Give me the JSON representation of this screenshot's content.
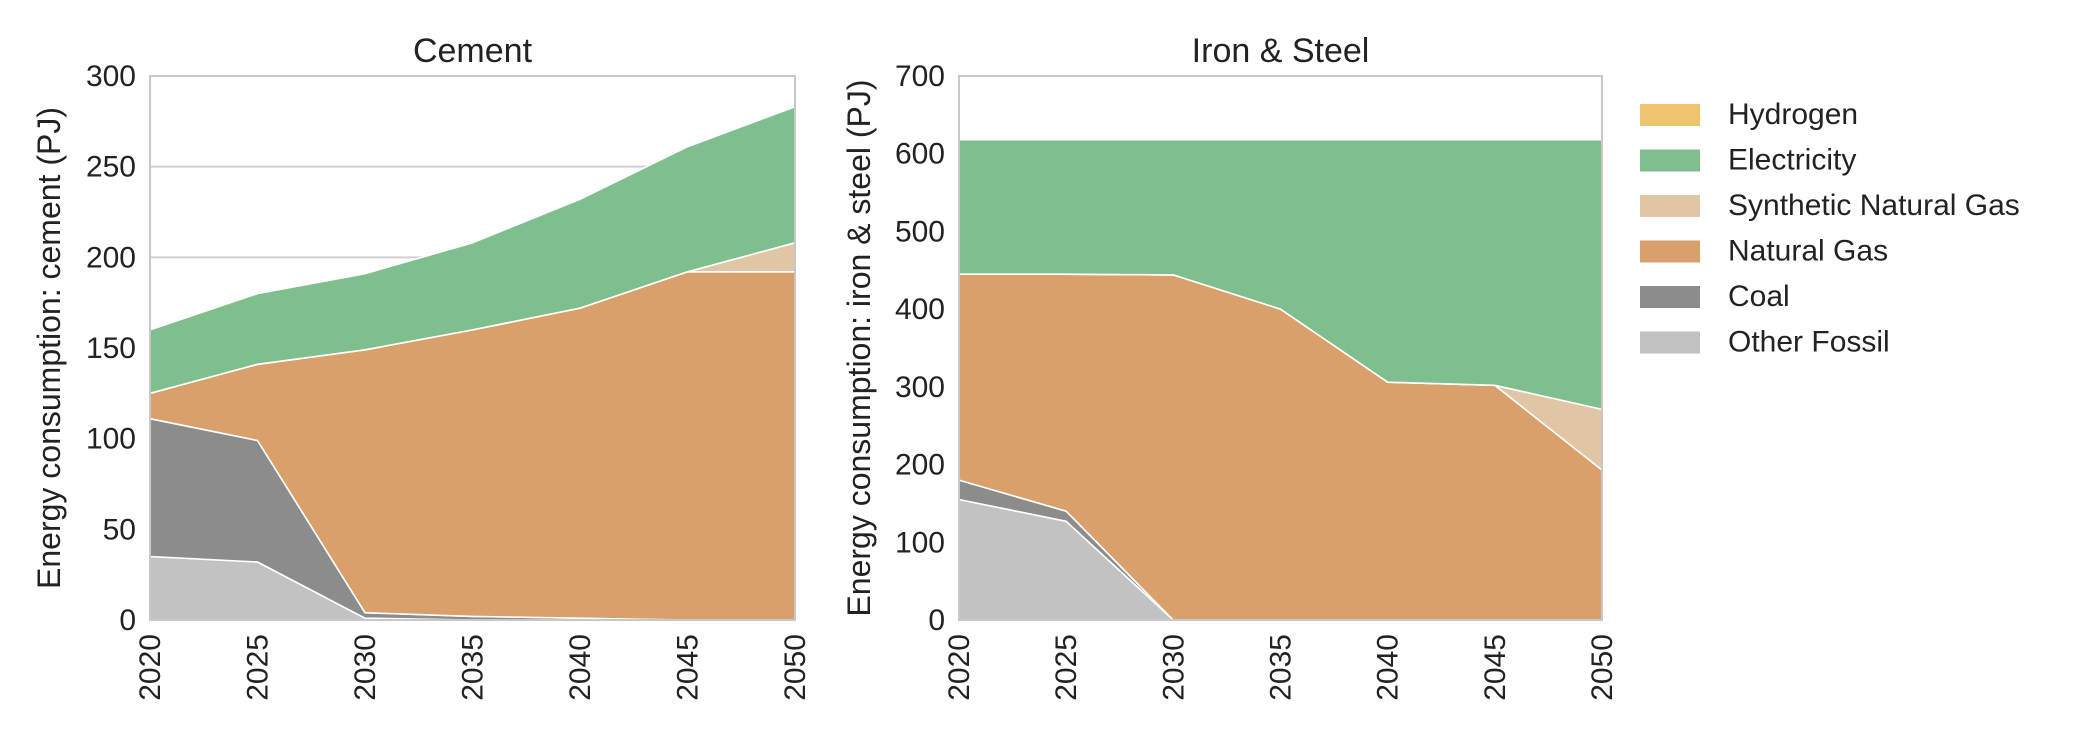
{
  "colors": {
    "Hydrogen": "#f0c46e",
    "Electricity": "#7fbf8e",
    "Synthetic Natural Gas": "#e0c6a5",
    "Natural Gas": "#d9a06b",
    "Coal": "#8c8c8c",
    "Other Fossil": "#c2c2c2"
  },
  "legend": {
    "items": [
      "Hydrogen",
      "Electricity",
      "Synthetic Natural Gas",
      "Natural Gas",
      "Coal",
      "Other Fossil"
    ]
  },
  "chart_data": [
    {
      "type": "area",
      "title": "Cement",
      "xlabel": "",
      "ylabel": "Energy consumption: cement (PJ)",
      "x": [
        2020,
        2025,
        2030,
        2035,
        2040,
        2045,
        2050
      ],
      "ylim": [
        0,
        300
      ],
      "yticks": [
        0,
        50,
        100,
        150,
        200,
        250,
        300
      ],
      "stacked": true,
      "series": [
        {
          "name": "Other Fossil",
          "values": [
            35,
            32,
            1,
            0,
            0,
            0,
            0
          ]
        },
        {
          "name": "Coal",
          "values": [
            76,
            67,
            3,
            2,
            1,
            0,
            0
          ]
        },
        {
          "name": "Natural Gas",
          "values": [
            14,
            42,
            145,
            158,
            171,
            192,
            192
          ]
        },
        {
          "name": "Synthetic Natural Gas",
          "values": [
            0,
            0,
            0,
            0,
            0,
            0,
            16
          ]
        },
        {
          "name": "Electricity",
          "values": [
            35,
            39,
            42,
            48,
            60,
            69,
            75
          ]
        },
        {
          "name": "Hydrogen",
          "values": [
            0,
            0,
            0,
            0,
            0,
            0,
            0
          ]
        }
      ]
    },
    {
      "type": "area",
      "title": "Iron & Steel",
      "xlabel": "",
      "ylabel": "Energy consumption: iron & steel (PJ)",
      "x": [
        2020,
        2025,
        2030,
        2035,
        2040,
        2045,
        2050
      ],
      "ylim": [
        0,
        700
      ],
      "yticks": [
        0,
        100,
        200,
        300,
        400,
        500,
        600,
        700
      ],
      "stacked": true,
      "series": [
        {
          "name": "Other Fossil",
          "values": [
            155,
            127,
            0,
            0,
            0,
            0,
            0
          ]
        },
        {
          "name": "Coal",
          "values": [
            25,
            13,
            0,
            0,
            0,
            0,
            0
          ]
        },
        {
          "name": "Natural Gas",
          "values": [
            265,
            305,
            444,
            400,
            306,
            302,
            193
          ]
        },
        {
          "name": "Synthetic Natural Gas",
          "values": [
            0,
            0,
            0,
            0,
            0,
            0,
            78
          ]
        },
        {
          "name": "Electricity",
          "values": [
            173,
            173,
            174,
            218,
            312,
            316,
            347
          ]
        },
        {
          "name": "Hydrogen",
          "values": [
            0,
            0,
            0,
            0,
            0,
            0,
            0
          ]
        }
      ]
    }
  ]
}
